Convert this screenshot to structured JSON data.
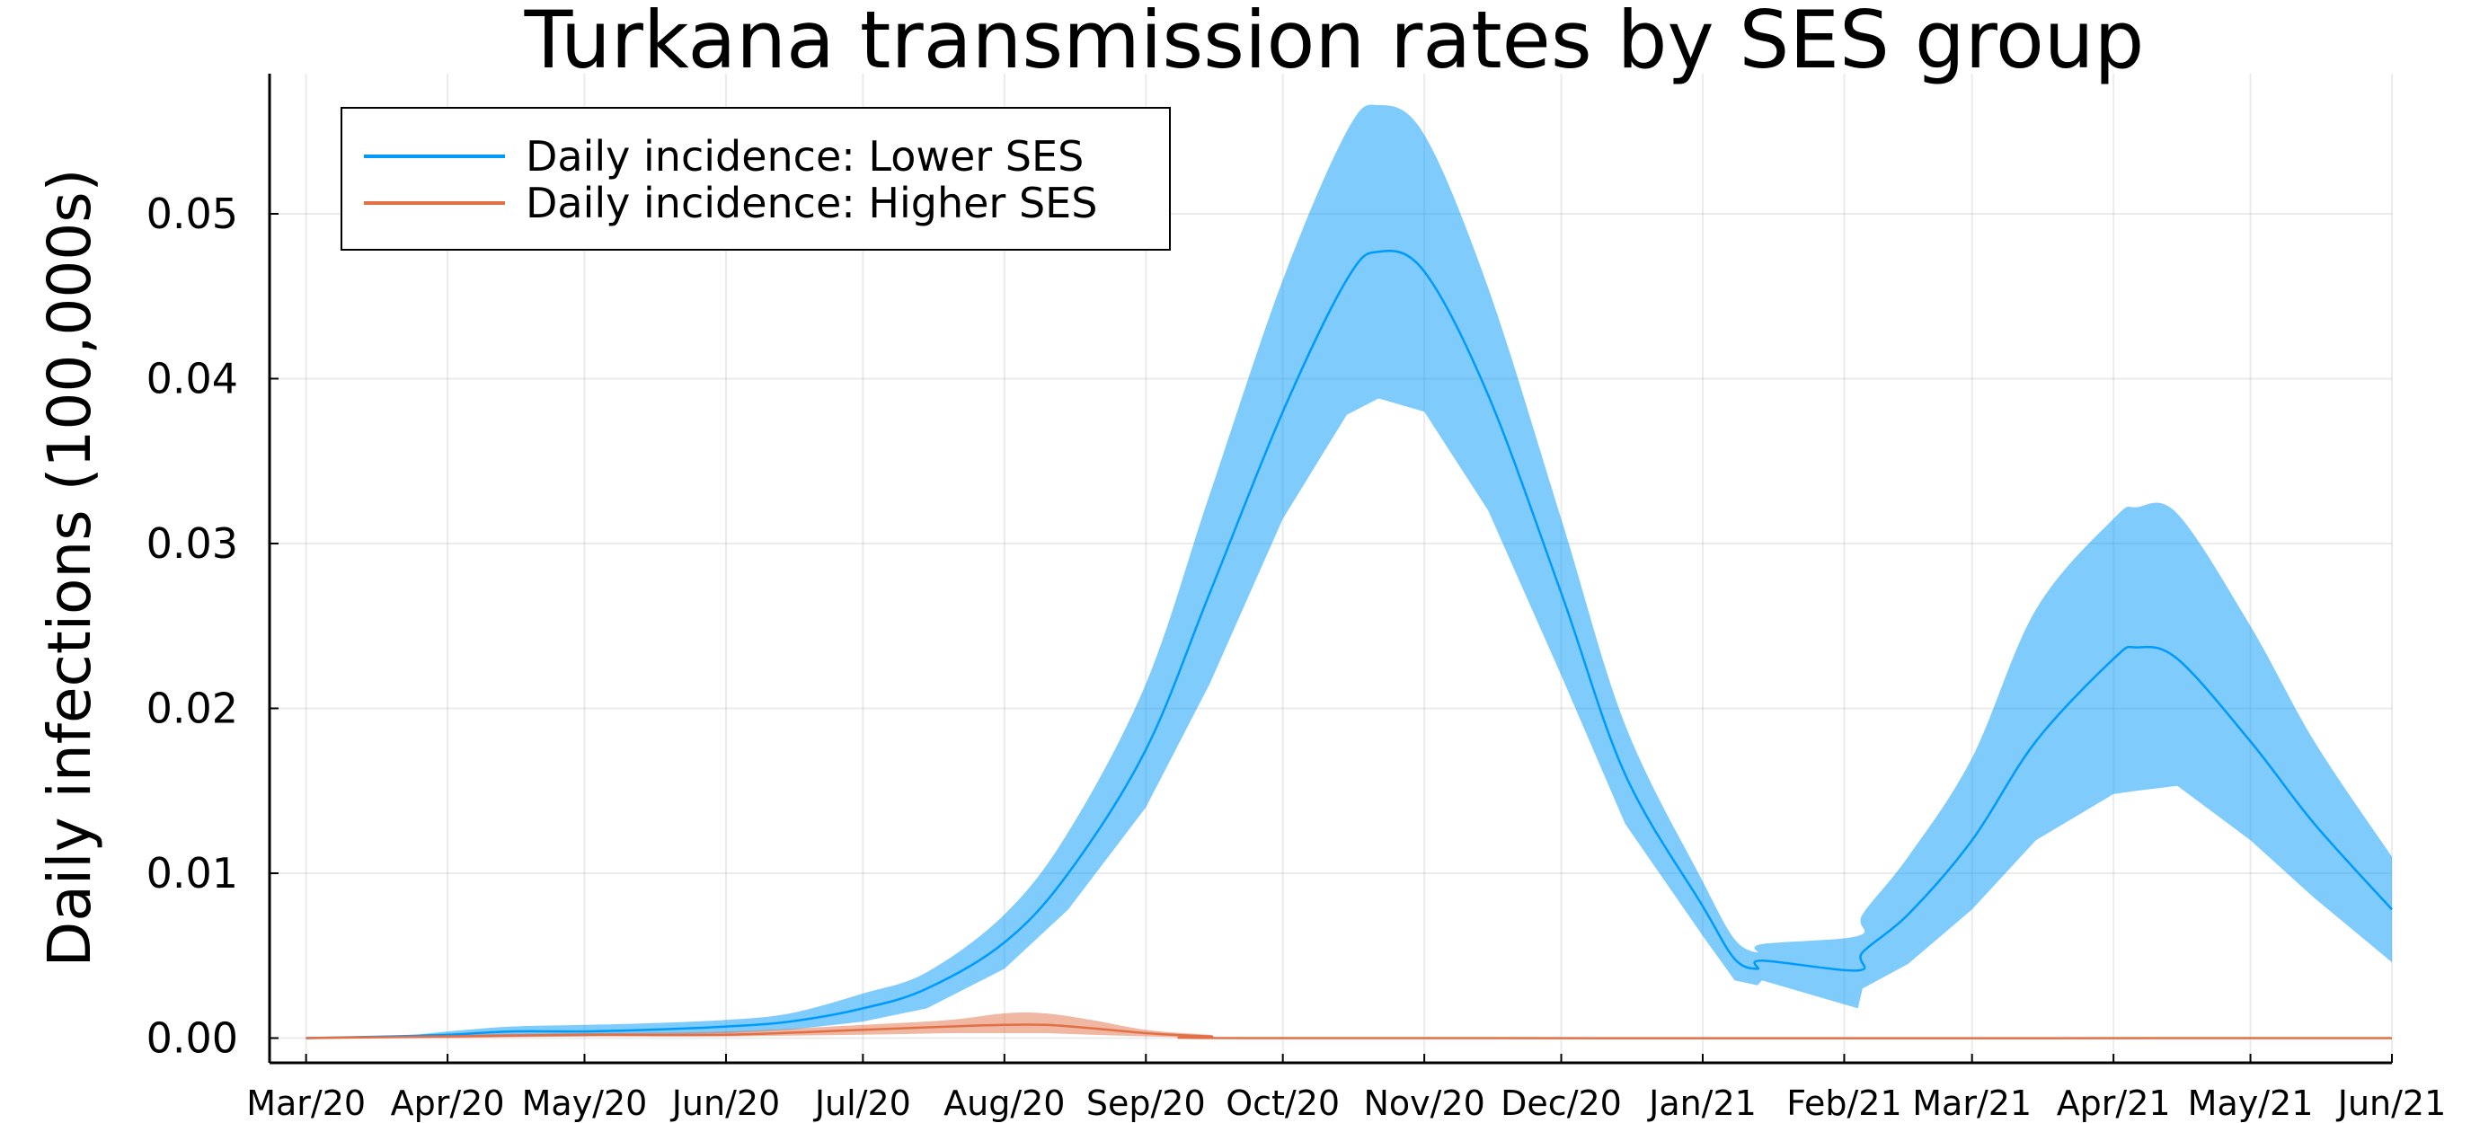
{
  "chart_data": {
    "type": "line",
    "title": "Turkana transmission rates by SES group",
    "xlabel": "",
    "ylabel": "Daily infections (100,000s)",
    "x_ticks": [
      "Mar/20",
      "Apr/20",
      "May/20",
      "Jun/20",
      "Jul/20",
      "Aug/20",
      "Sep/20",
      "Oct/20",
      "Nov/20",
      "Dec/20",
      "Jan/21",
      "Feb/21",
      "Mar/21",
      "Apr/21",
      "May/21",
      "Jun/21"
    ],
    "y_ticks": [
      "0.00",
      "0.01",
      "0.02",
      "0.03",
      "0.04",
      "0.05"
    ],
    "ylim": [
      -0.0015,
      0.0585
    ],
    "xlim": [
      "2020-02-22",
      "2021-06-01"
    ],
    "grid": true,
    "legend_position": "top-left",
    "colors": {
      "lower_ses": "#009AFA",
      "higher_ses": "#E26F46"
    },
    "series": [
      {
        "name": "Daily incidence: Lower SES",
        "band": "credible interval",
        "points": [
          {
            "x": "2020-03-01",
            "y": 0.0,
            "lo": 0.0,
            "hi": 0.0
          },
          {
            "x": "2020-03-20",
            "y": 0.0001,
            "lo": 0.0,
            "hi": 0.0001
          },
          {
            "x": "2020-04-01",
            "y": 0.0002,
            "lo": 0.0001,
            "hi": 0.0004
          },
          {
            "x": "2020-04-15",
            "y": 0.0004,
            "lo": 0.0001,
            "hi": 0.0007
          },
          {
            "x": "2020-05-01",
            "y": 0.0004,
            "lo": 0.0001,
            "hi": 0.0008
          },
          {
            "x": "2020-05-15",
            "y": 0.0005,
            "lo": 0.0002,
            "hi": 0.0009
          },
          {
            "x": "2020-06-01",
            "y": 0.0007,
            "lo": 0.0003,
            "hi": 0.0011
          },
          {
            "x": "2020-06-15",
            "y": 0.001,
            "lo": 0.0005,
            "hi": 0.0015
          },
          {
            "x": "2020-07-01",
            "y": 0.0018,
            "lo": 0.001,
            "hi": 0.0027
          },
          {
            "x": "2020-07-15",
            "y": 0.003,
            "lo": 0.0018,
            "hi": 0.004
          },
          {
            "x": "2020-08-01",
            "y": 0.0058,
            "lo": 0.0042,
            "hi": 0.0075
          },
          {
            "x": "2020-08-15",
            "y": 0.01,
            "lo": 0.0078,
            "hi": 0.0125
          },
          {
            "x": "2020-09-01",
            "y": 0.0175,
            "lo": 0.014,
            "hi": 0.0215
          },
          {
            "x": "2020-09-15",
            "y": 0.027,
            "lo": 0.0215,
            "hi": 0.033
          },
          {
            "x": "2020-10-01",
            "y": 0.038,
            "lo": 0.0315,
            "hi": 0.046
          },
          {
            "x": "2020-10-15",
            "y": 0.046,
            "lo": 0.0378,
            "hi": 0.055
          },
          {
            "x": "2020-10-22",
            "y": 0.0477,
            "lo": 0.0388,
            "hi": 0.0566
          },
          {
            "x": "2020-11-01",
            "y": 0.0465,
            "lo": 0.038,
            "hi": 0.0548
          },
          {
            "x": "2020-11-15",
            "y": 0.039,
            "lo": 0.032,
            "hi": 0.0455
          },
          {
            "x": "2020-12-01",
            "y": 0.027,
            "lo": 0.022,
            "hi": 0.0315
          },
          {
            "x": "2020-12-15",
            "y": 0.016,
            "lo": 0.013,
            "hi": 0.019
          },
          {
            "x": "2021-01-01",
            "y": 0.008,
            "lo": 0.0062,
            "hi": 0.0095
          },
          {
            "x": "2021-01-08",
            "y": 0.0048,
            "lo": 0.0035,
            "hi": 0.006
          },
          {
            "x": "2021-01-13",
            "y": 0.0042,
            "lo": 0.0032,
            "hi": 0.0052
          },
          {
            "x": "2021-01-14",
            "y": 0.0047,
            "lo": 0.0035,
            "hi": 0.0057
          },
          {
            "x": "2021-02-04",
            "y": 0.0041,
            "lo": 0.0018,
            "hi": 0.0062
          },
          {
            "x": "2021-02-05",
            "y": 0.0052,
            "lo": 0.003,
            "hi": 0.0075
          },
          {
            "x": "2021-02-15",
            "y": 0.0075,
            "lo": 0.0045,
            "hi": 0.011
          },
          {
            "x": "2021-03-01",
            "y": 0.012,
            "lo": 0.0078,
            "hi": 0.017
          },
          {
            "x": "2021-03-15",
            "y": 0.018,
            "lo": 0.012,
            "hi": 0.026
          },
          {
            "x": "2021-04-01",
            "y": 0.023,
            "lo": 0.0148,
            "hi": 0.0315
          },
          {
            "x": "2021-04-06",
            "y": 0.0237,
            "lo": 0.015,
            "hi": 0.0322
          },
          {
            "x": "2021-04-15",
            "y": 0.023,
            "lo": 0.0153,
            "hi": 0.0318
          },
          {
            "x": "2021-05-01",
            "y": 0.018,
            "lo": 0.012,
            "hi": 0.025
          },
          {
            "x": "2021-05-15",
            "y": 0.013,
            "lo": 0.0085,
            "hi": 0.018
          },
          {
            "x": "2021-06-01",
            "y": 0.0078,
            "lo": 0.0046,
            "hi": 0.011
          }
        ]
      },
      {
        "name": "Daily incidence: Higher SES",
        "band": "credible interval",
        "points": [
          {
            "x": "2020-03-01",
            "y": 0.0,
            "lo": 0.0,
            "hi": 0.0
          },
          {
            "x": "2020-04-01",
            "y": 0.0001,
            "lo": 0.0,
            "hi": 0.0002
          },
          {
            "x": "2020-05-01",
            "y": 0.0002,
            "lo": 0.0001,
            "hi": 0.0003
          },
          {
            "x": "2020-06-01",
            "y": 0.0002,
            "lo": 0.0001,
            "hi": 0.0004
          },
          {
            "x": "2020-07-01",
            "y": 0.0005,
            "lo": 0.0002,
            "hi": 0.0008
          },
          {
            "x": "2020-07-20",
            "y": 0.0007,
            "lo": 0.0003,
            "hi": 0.0011
          },
          {
            "x": "2020-08-01",
            "y": 0.0008,
            "lo": 0.0003,
            "hi": 0.0015
          },
          {
            "x": "2020-08-10",
            "y": 0.0008,
            "lo": 0.0003,
            "hi": 0.0015
          },
          {
            "x": "2020-08-20",
            "y": 0.0006,
            "lo": 0.0002,
            "hi": 0.0011
          },
          {
            "x": "2020-09-01",
            "y": 0.0003,
            "lo": 0.0001,
            "hi": 0.0005
          },
          {
            "x": "2020-09-15",
            "y": 0.0001,
            "lo": 0.0,
            "hi": 0.0002
          },
          {
            "x": "2020-10-01",
            "y": 0.0,
            "lo": 0.0,
            "hi": 0.0
          },
          {
            "x": "2021-06-01",
            "y": 0.0,
            "lo": 0.0,
            "hi": 0.0
          }
        ]
      }
    ]
  }
}
